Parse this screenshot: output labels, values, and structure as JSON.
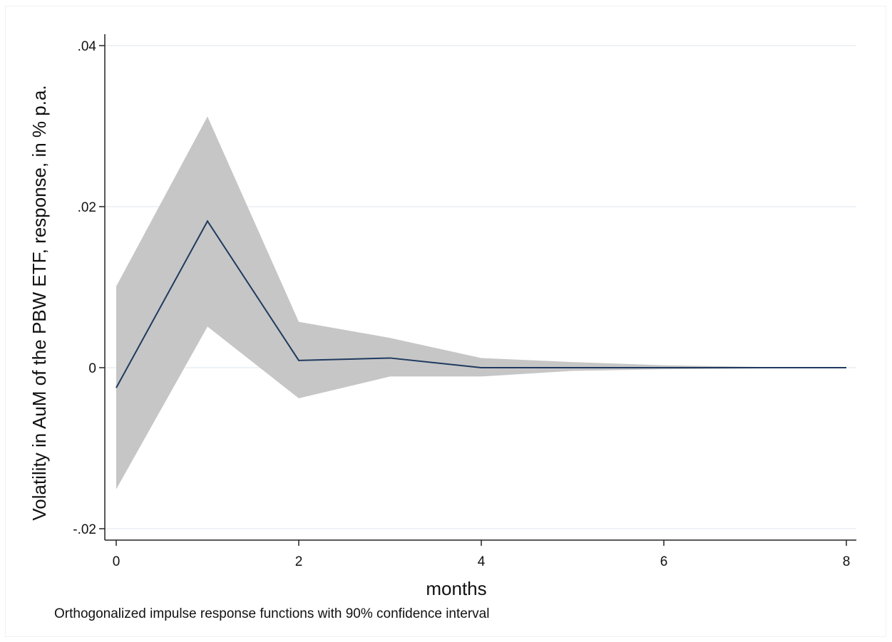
{
  "chart_data": {
    "type": "line",
    "xlabel": "months",
    "ylabel": "Volatility in AuM of the PBW ETF, response, in % p.a.",
    "note": "Orthogonalized impulse response functions with 90% confidence interval",
    "xlim": [
      0,
      8
    ],
    "ylim": [
      -0.02,
      0.04
    ],
    "x_ticks": [
      0,
      2,
      4,
      6,
      8
    ],
    "x_tick_labels": [
      "0",
      "2",
      "4",
      "6",
      "8"
    ],
    "y_ticks": [
      -0.02,
      0,
      0.02,
      0.04
    ],
    "y_tick_labels": [
      "-.02",
      "0",
      ".02",
      ".04"
    ],
    "grid": true,
    "legend": "none",
    "x": [
      0,
      1,
      2,
      3,
      4,
      5,
      6,
      7,
      8
    ],
    "series": [
      {
        "values": [
          -0.0025,
          0.0182,
          0.0009,
          0.0012,
          0.0,
          0.0,
          0.0,
          0.0,
          0.0
        ]
      }
    ],
    "band": {
      "upper": [
        0.0101,
        0.0312,
        0.0057,
        0.0037,
        0.0012,
        0.0007,
        0.0003,
        0.0001,
        0.0
      ],
      "lower": [
        -0.0151,
        0.0051,
        -0.0038,
        -0.0011,
        -0.0011,
        -0.0004,
        -0.0002,
        -0.0001,
        0.0
      ]
    },
    "colors": {
      "line": "#1f3a5f",
      "band": "#c6c6c6",
      "grid": "#e8eef3",
      "axis": "#222222"
    }
  }
}
